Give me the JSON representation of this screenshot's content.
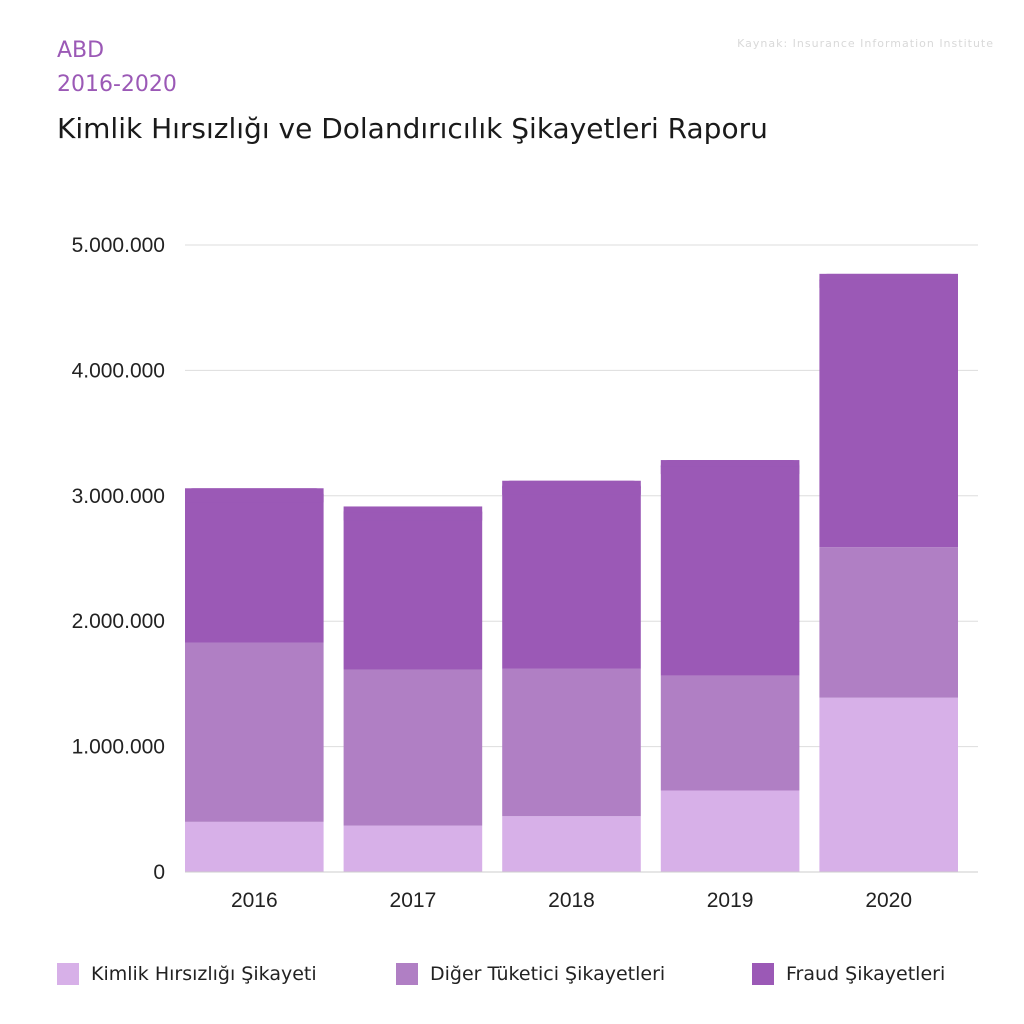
{
  "header": {
    "subtitle_line1": "ABD",
    "subtitle_line2": "2016-2020",
    "title": "Kimlik Hırsızlığı ve Dolandırıcılık Şikayetleri Raporu",
    "source": "Kaynak: Insurance Information Institute"
  },
  "colors": {
    "accent": "#9b59b6",
    "series": [
      "#d7b0e8",
      "#b07fc4",
      "#9b59b6"
    ],
    "grid": "#dddddd"
  },
  "chart_data": {
    "type": "bar",
    "stacked": true,
    "categories": [
      "2016",
      "2017",
      "2018",
      "2019",
      "2020"
    ],
    "series": [
      {
        "name": "Kimlik Hırsızlığı Şikayeti",
        "values": [
          400000,
          370000,
          445000,
          650000,
          1390000
        ]
      },
      {
        "name": "Diğer Tüketici Şikayetleri",
        "values": [
          1430000,
          1245000,
          1175000,
          915000,
          1200000
        ]
      },
      {
        "name": "Fraud Şikayetleri",
        "values": [
          1230000,
          1300000,
          1500000,
          1720000,
          2180000
        ]
      }
    ],
    "ylim": [
      0,
      5000000
    ],
    "yticks": [
      0,
      1000000,
      2000000,
      3000000,
      4000000,
      5000000
    ],
    "ytick_labels": [
      "0",
      "1.000.000",
      "2.000.000",
      "3.000.000",
      "4.000.000",
      "5.000.000"
    ],
    "grid": true,
    "legend_position": "bottom"
  }
}
